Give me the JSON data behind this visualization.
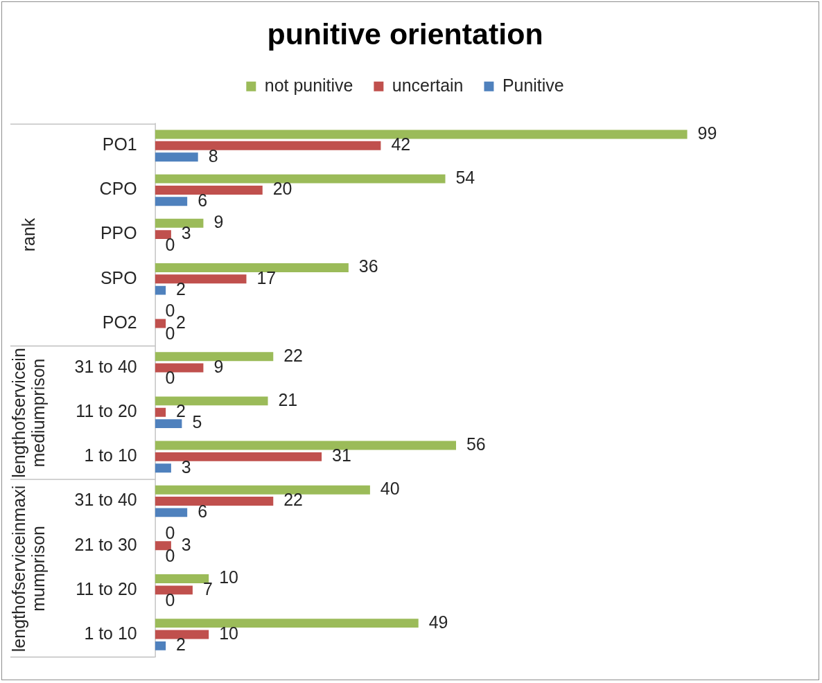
{
  "chart_data": {
    "type": "bar",
    "orientation": "horizontal",
    "title": "punitive orientation",
    "legend": "top",
    "tick_labels": "y",
    "data_labels": true,
    "categories": [
      "PO1",
      "CPO",
      "PPO",
      "SPO",
      "PO2",
      "31 to 40",
      "11 to 20",
      "1 to 10",
      "31 to 40",
      "21 to 30",
      "11 to 20",
      "1 to 10"
    ],
    "series": [
      {
        "name": "not punitive",
        "color": "#9bbb59",
        "values": [
          99,
          54,
          9,
          36,
          0,
          22,
          21,
          56,
          40,
          0,
          10,
          49
        ]
      },
      {
        "name": "uncertain",
        "color": "#c0504d",
        "values": [
          42,
          20,
          3,
          17,
          2,
          9,
          2,
          31,
          22,
          3,
          7,
          10
        ]
      },
      {
        "name": "Punitive",
        "color": "#4f81bd",
        "values": [
          8,
          6,
          0,
          2,
          0,
          0,
          5,
          3,
          6,
          0,
          0,
          2
        ]
      }
    ],
    "annotations": [
      "rank",
      "lengthofserviceinmediumprison",
      "lengthofserviceinmaximumprison"
    ]
  }
}
